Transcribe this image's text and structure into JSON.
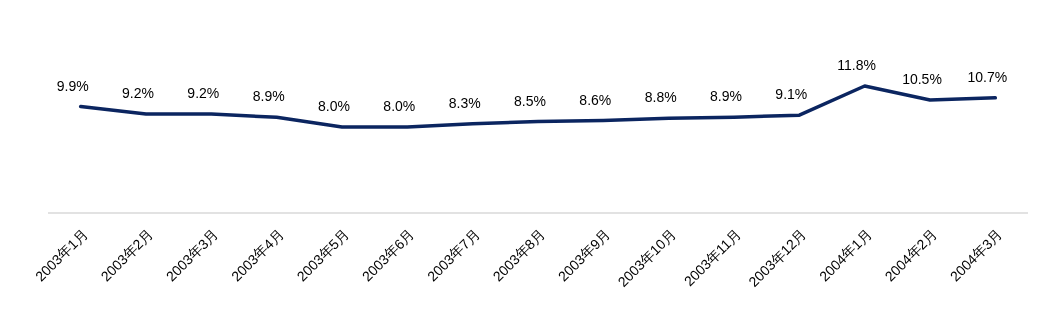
{
  "chart_data": {
    "type": "line",
    "categories": [
      "2003年1月",
      "2003年2月",
      "2003年3月",
      "2003年4月",
      "2003年5月",
      "2003年6月",
      "2003年7月",
      "2003年8月",
      "2003年9月",
      "2003年10月",
      "2003年11月",
      "2003年12月",
      "2004年1月",
      "2004年2月",
      "2004年3月"
    ],
    "series": [
      {
        "color": "#0b2560",
        "values": [
          9.9,
          9.2,
          9.2,
          8.9,
          8.0,
          8.0,
          8.3,
          8.5,
          8.6,
          8.8,
          8.9,
          9.1,
          11.8,
          10.5,
          10.7
        ],
        "value_labels": [
          "9.9%",
          "9.2%",
          "9.2%",
          "8.9%",
          "8.0%",
          "8.0%",
          "8.3%",
          "8.5%",
          "8.6%",
          "8.8%",
          "8.9%",
          "9.1%",
          "11.8%",
          "10.5%",
          "10.7%"
        ]
      }
    ]
  }
}
